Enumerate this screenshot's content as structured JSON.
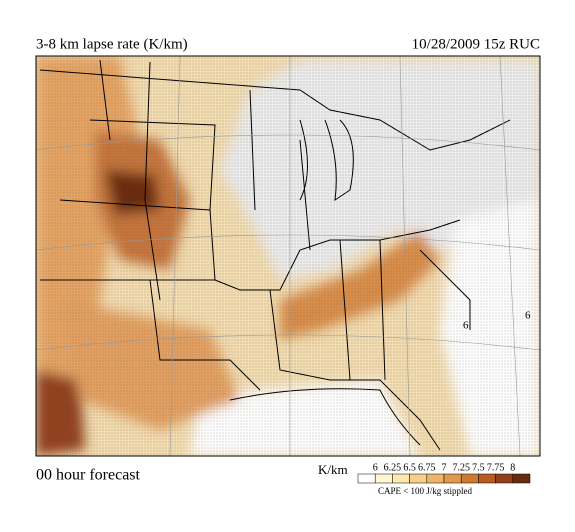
{
  "header": {
    "title": "3-8 km lapse rate (K/km)",
    "valid": "10/28/2009  15z  RUC"
  },
  "map": {
    "contour_labels": [
      "6",
      "6"
    ]
  },
  "footer": {
    "forecast": "00 hour forecast",
    "units": "K/km",
    "levels": [
      "6",
      "6.25",
      "6.5",
      "6.75",
      "7",
      "7.25",
      "7.5",
      "7.75",
      "8"
    ],
    "colors": [
      "#ffffff",
      "#fff6d2",
      "#fde8b0",
      "#f6d08a",
      "#edb56a",
      "#e09a4d",
      "#cf7a33",
      "#b85c22",
      "#93401a",
      "#6a2a10"
    ],
    "note": "CAPE < 100 J/kg stippled"
  }
}
